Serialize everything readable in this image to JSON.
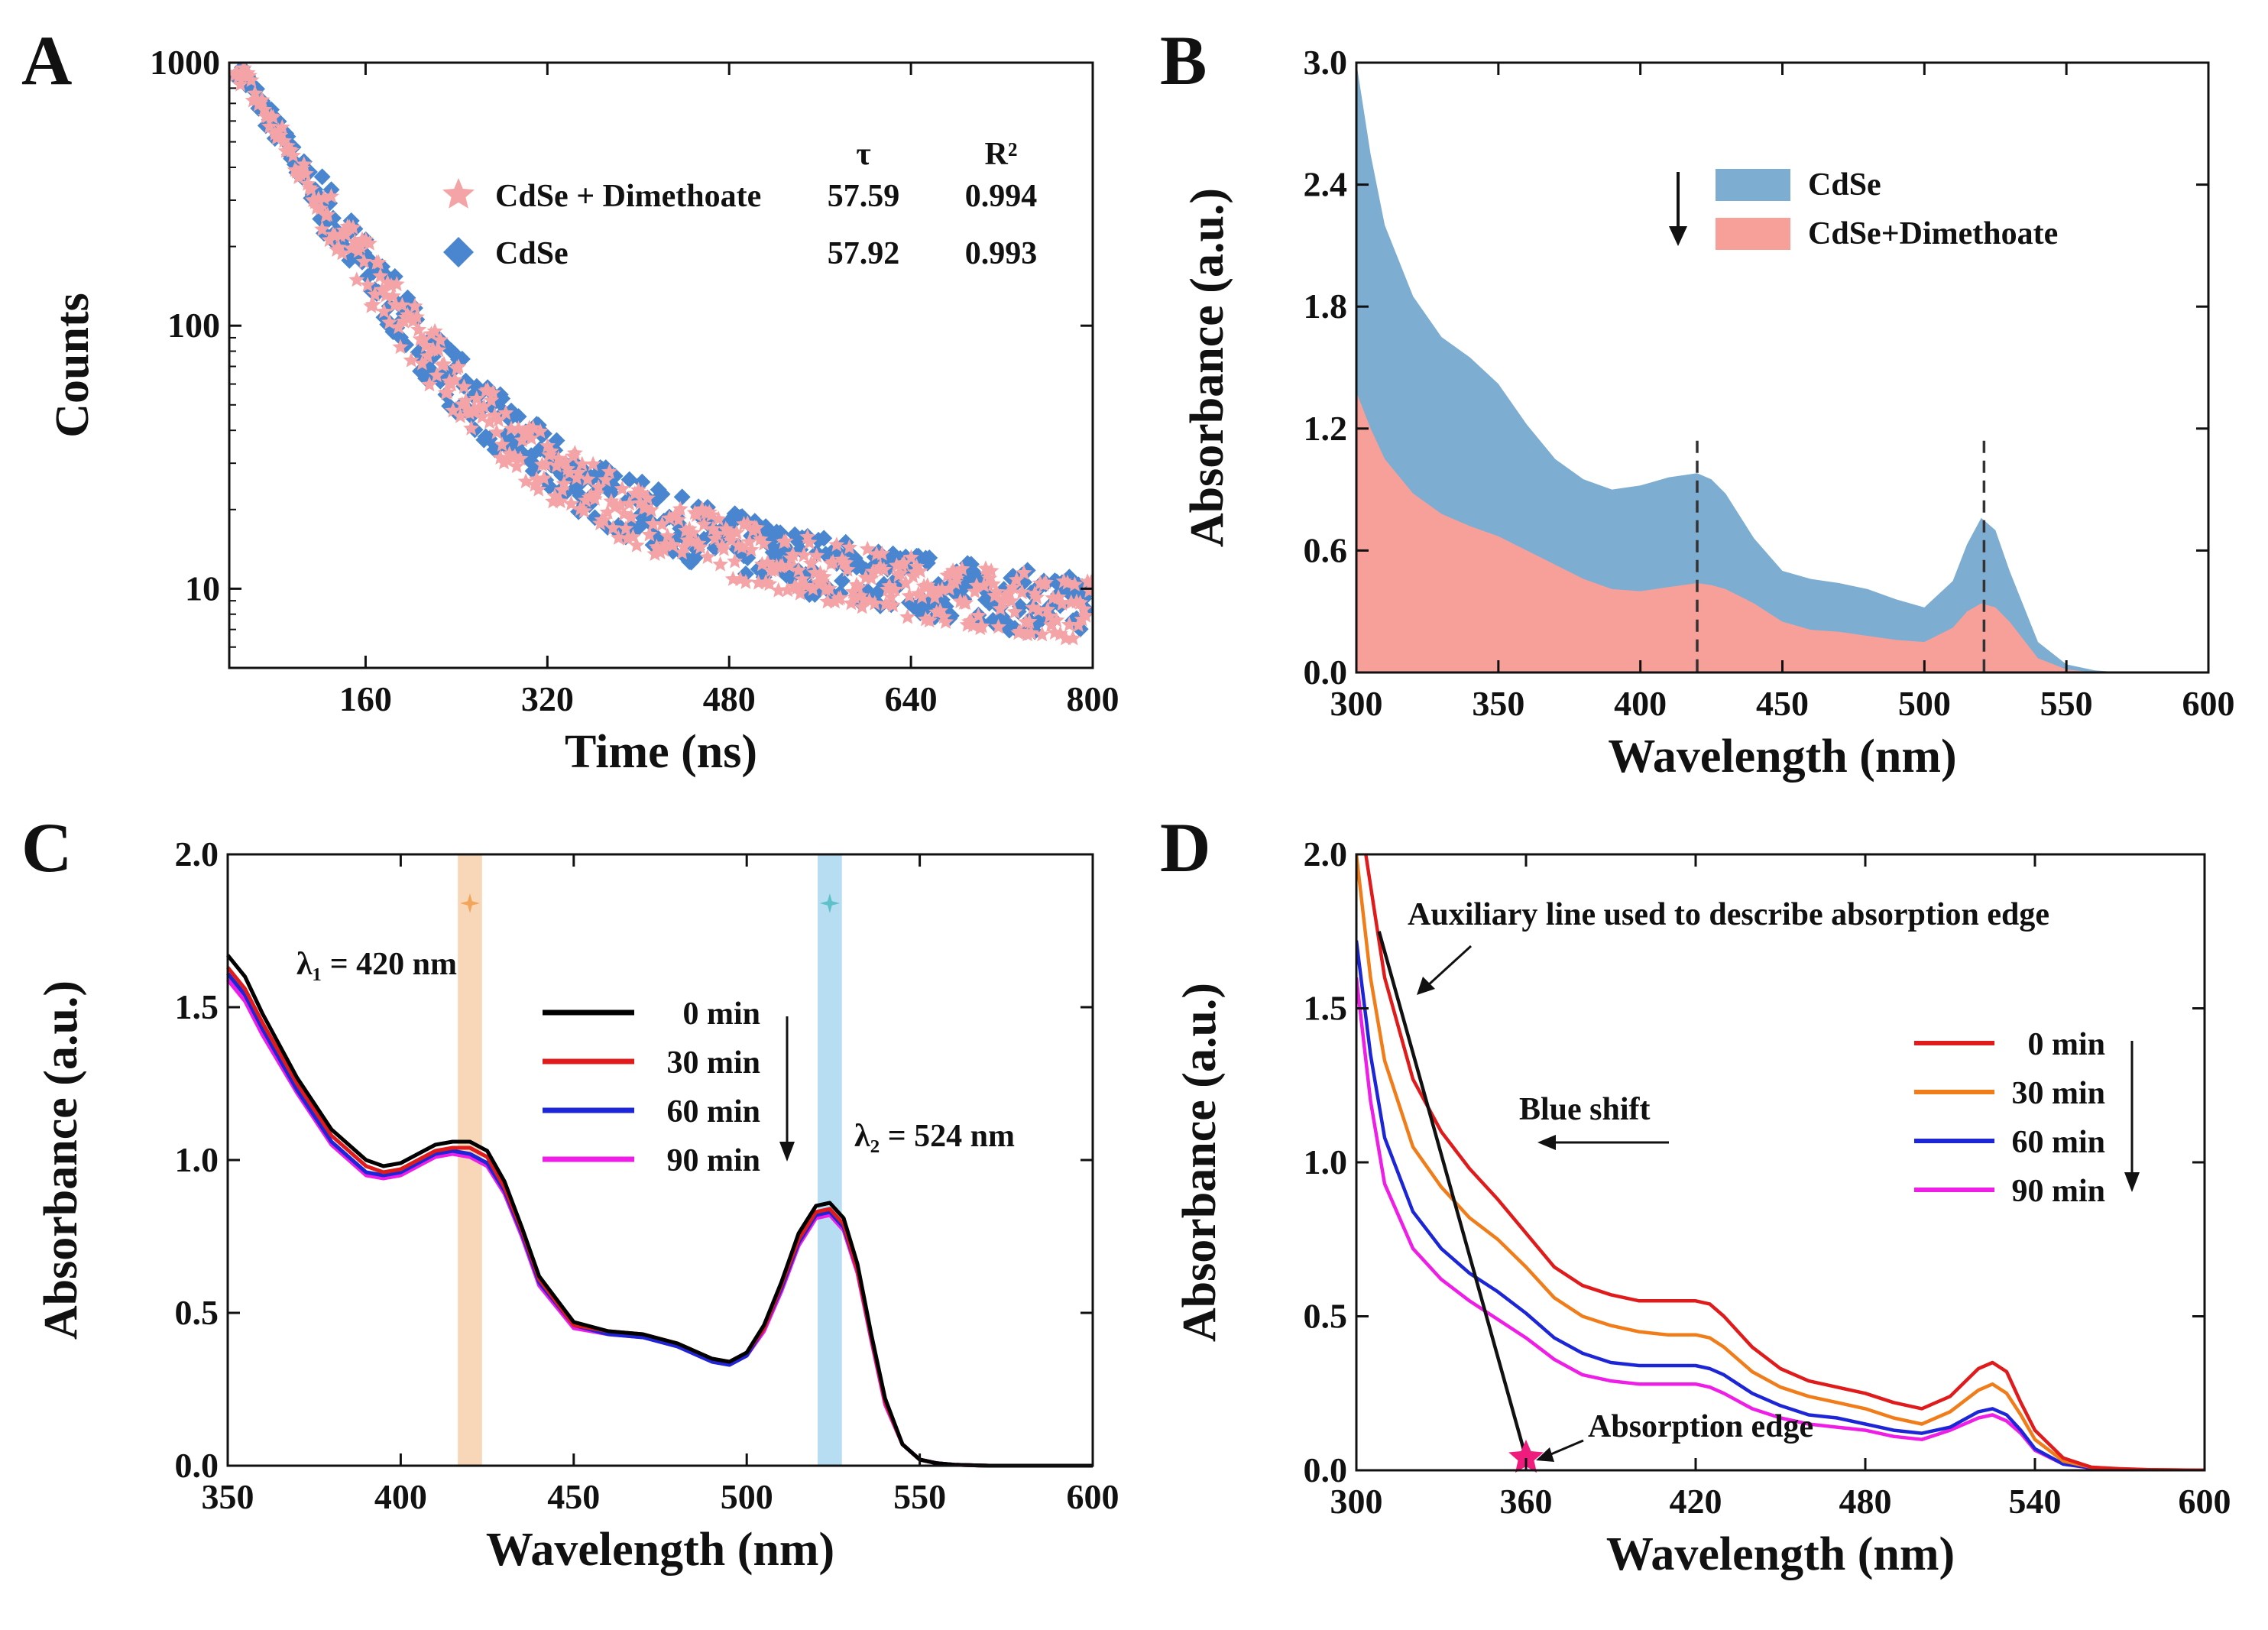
{
  "chart_data": [
    {
      "panel": "A",
      "type": "scatter",
      "xlabel": "Time (ns)",
      "ylabel": "Counts",
      "xscale": "linear",
      "yscale": "log",
      "xlim": [
        40,
        800
      ],
      "ylim": [
        5,
        1000
      ],
      "xticks": [
        "160",
        "320",
        "480",
        "640",
        "800"
      ],
      "yticks": [
        "10",
        "100",
        "1000"
      ],
      "legend_header": {
        "tau": "τ",
        "r2": "R²"
      },
      "legend_position": "top-right",
      "series": [
        {
          "name": "CdSe + Dimethoate",
          "marker": "star",
          "color": "#f4a3a6",
          "tau": "57.59",
          "r2": "0.994",
          "decay": {
            "peak": 1000,
            "tau_ns": 57.59,
            "slow_amp": 45,
            "slow_tau_ns": 250,
            "floor": 6,
            "t0": 45
          }
        },
        {
          "name": "CdSe",
          "marker": "diamond",
          "color": "#4a86cf",
          "tau": "57.92",
          "r2": "0.993",
          "decay": {
            "peak": 1000,
            "tau_ns": 57.92,
            "slow_amp": 48,
            "slow_tau_ns": 250,
            "floor": 6,
            "t0": 45
          }
        }
      ]
    },
    {
      "panel": "B",
      "type": "area",
      "xlabel": "Wavelength (nm)",
      "ylabel": "Absorbance (a.u.)",
      "xlim": [
        300,
        600
      ],
      "ylim": [
        0,
        3.0
      ],
      "xticks": [
        "300",
        "350",
        "400",
        "450",
        "500",
        "550",
        "600"
      ],
      "yticks": [
        "0.0",
        "0.6",
        "1.2",
        "1.8",
        "2.4",
        "3.0"
      ],
      "markers": [
        420,
        521
      ],
      "legend_position": "top-right",
      "x": [
        300,
        305,
        310,
        320,
        330,
        340,
        350,
        360,
        370,
        380,
        390,
        400,
        410,
        420,
        425,
        430,
        440,
        450,
        460,
        470,
        480,
        490,
        500,
        510,
        515,
        520,
        525,
        530,
        540,
        550,
        560,
        570,
        600
      ],
      "series": [
        {
          "name": "CdSe",
          "color": "#7eadd2",
          "values": [
            3.0,
            2.55,
            2.2,
            1.85,
            1.65,
            1.55,
            1.42,
            1.22,
            1.05,
            0.95,
            0.9,
            0.92,
            0.96,
            0.98,
            0.95,
            0.88,
            0.66,
            0.5,
            0.46,
            0.44,
            0.41,
            0.36,
            0.32,
            0.45,
            0.63,
            0.76,
            0.7,
            0.5,
            0.15,
            0.04,
            0.01,
            0.0,
            0.0
          ]
        },
        {
          "name": "CdSe+Dimethoate",
          "color": "#f7a09a",
          "values": [
            1.38,
            1.2,
            1.05,
            0.88,
            0.78,
            0.72,
            0.67,
            0.6,
            0.53,
            0.46,
            0.41,
            0.4,
            0.42,
            0.44,
            0.43,
            0.41,
            0.34,
            0.25,
            0.21,
            0.2,
            0.18,
            0.16,
            0.15,
            0.22,
            0.3,
            0.34,
            0.32,
            0.25,
            0.07,
            0.015,
            0.0,
            0.0,
            0.0
          ]
        }
      ]
    },
    {
      "panel": "C",
      "type": "line",
      "xlabel": "Wavelength (nm)",
      "ylabel": "Absorbance (a.u.)",
      "xlim": [
        350,
        600
      ],
      "ylim": [
        0,
        2.0
      ],
      "xticks": [
        "350",
        "400",
        "450",
        "500",
        "550",
        "600"
      ],
      "yticks": [
        "0.0",
        "0.5",
        "1.0",
        "1.5",
        "2.0"
      ],
      "annotations": {
        "lambda1": "λ₁ = 420 nm",
        "lambda2": "λ₂ = 524 nm"
      },
      "bands": [
        {
          "center": 420,
          "width": 7,
          "color": "#f6c9a0"
        },
        {
          "center": 524,
          "width": 7,
          "color": "#9fd2ee"
        }
      ],
      "legend_position": "center",
      "x": [
        350,
        355,
        360,
        370,
        380,
        390,
        395,
        400,
        405,
        410,
        415,
        420,
        425,
        430,
        435,
        440,
        450,
        460,
        470,
        480,
        490,
        495,
        500,
        505,
        510,
        515,
        520,
        524,
        528,
        532,
        536,
        540,
        545,
        550,
        555,
        560,
        570,
        600
      ],
      "series": [
        {
          "name": "0  min",
          "color": "#000000",
          "values": [
            1.67,
            1.6,
            1.48,
            1.27,
            1.1,
            1.0,
            0.98,
            0.99,
            1.02,
            1.05,
            1.06,
            1.06,
            1.03,
            0.93,
            0.78,
            0.62,
            0.47,
            0.44,
            0.43,
            0.4,
            0.35,
            0.34,
            0.37,
            0.46,
            0.6,
            0.76,
            0.85,
            0.86,
            0.81,
            0.66,
            0.43,
            0.22,
            0.07,
            0.02,
            0.008,
            0.003,
            0.0,
            0.0
          ]
        },
        {
          "name": "30 min",
          "color": "#e01b1b",
          "values": [
            1.63,
            1.56,
            1.45,
            1.25,
            1.08,
            0.98,
            0.96,
            0.97,
            1.0,
            1.03,
            1.04,
            1.04,
            1.01,
            0.91,
            0.77,
            0.61,
            0.46,
            0.44,
            0.43,
            0.4,
            0.35,
            0.34,
            0.37,
            0.45,
            0.59,
            0.74,
            0.83,
            0.84,
            0.79,
            0.64,
            0.42,
            0.21,
            0.07,
            0.02,
            0.008,
            0.003,
            0.0,
            0.0
          ]
        },
        {
          "name": "60 min",
          "color": "#1d26d6",
          "values": [
            1.61,
            1.54,
            1.43,
            1.23,
            1.06,
            0.96,
            0.95,
            0.96,
            0.99,
            1.02,
            1.03,
            1.02,
            0.99,
            0.9,
            0.76,
            0.6,
            0.46,
            0.43,
            0.42,
            0.39,
            0.34,
            0.33,
            0.36,
            0.45,
            0.58,
            0.73,
            0.82,
            0.83,
            0.78,
            0.64,
            0.42,
            0.21,
            0.07,
            0.02,
            0.008,
            0.003,
            0.0,
            0.0
          ]
        },
        {
          "name": "90 min",
          "color": "#ee1ee6",
          "values": [
            1.59,
            1.52,
            1.41,
            1.22,
            1.05,
            0.95,
            0.94,
            0.95,
            0.98,
            1.01,
            1.02,
            1.01,
            0.98,
            0.89,
            0.75,
            0.59,
            0.45,
            0.43,
            0.42,
            0.39,
            0.34,
            0.33,
            0.36,
            0.44,
            0.57,
            0.72,
            0.81,
            0.82,
            0.77,
            0.63,
            0.41,
            0.2,
            0.07,
            0.02,
            0.008,
            0.003,
            0.0,
            0.0
          ]
        }
      ]
    },
    {
      "panel": "D",
      "type": "line",
      "xlabel": "Wavelength (nm)",
      "ylabel": "Absorbance (a.u.)",
      "xlim": [
        300,
        600
      ],
      "ylim": [
        0,
        2.0
      ],
      "xticks": [
        "300",
        "360",
        "420",
        "480",
        "540",
        "600"
      ],
      "yticks": [
        "0.0",
        "0.5",
        "1.0",
        "1.5",
        "2.0"
      ],
      "annotations": {
        "auxiliary": "Auxiliary line used to describe absorption edge",
        "blue_shift": "Blue shift",
        "absorption_edge": "Absorption edge"
      },
      "auxiliary_line": {
        "x": [
          308,
          360
        ],
        "y": [
          1.75,
          0.04
        ]
      },
      "edge_point": {
        "x": 360,
        "y": 0.04,
        "color": "#ee1c7c"
      },
      "legend_position": "right",
      "x": [
        300,
        305,
        310,
        320,
        330,
        340,
        350,
        360,
        370,
        380,
        390,
        400,
        410,
        420,
        425,
        430,
        440,
        450,
        460,
        470,
        480,
        490,
        500,
        510,
        520,
        525,
        530,
        535,
        540,
        550,
        560,
        570,
        580,
        600
      ],
      "series": [
        {
          "name": "0  min",
          "color": "#e01b1b",
          "values": [
            2.2,
            1.9,
            1.6,
            1.27,
            1.1,
            0.98,
            0.88,
            0.77,
            0.66,
            0.6,
            0.57,
            0.55,
            0.55,
            0.55,
            0.54,
            0.5,
            0.4,
            0.33,
            0.29,
            0.27,
            0.25,
            0.22,
            0.2,
            0.24,
            0.33,
            0.35,
            0.32,
            0.22,
            0.13,
            0.04,
            0.01,
            0.005,
            0.002,
            0.0
          ]
        },
        {
          "name": "30 min",
          "color": "#f07d1a",
          "values": [
            2.0,
            1.6,
            1.33,
            1.05,
            0.92,
            0.82,
            0.75,
            0.66,
            0.56,
            0.5,
            0.47,
            0.45,
            0.44,
            0.44,
            0.43,
            0.4,
            0.32,
            0.27,
            0.24,
            0.22,
            0.2,
            0.17,
            0.15,
            0.19,
            0.26,
            0.28,
            0.25,
            0.18,
            0.1,
            0.03,
            0.01,
            0.004,
            0.002,
            0.0
          ]
        },
        {
          "name": "60 min",
          "color": "#1d26d6",
          "values": [
            1.72,
            1.35,
            1.08,
            0.84,
            0.72,
            0.64,
            0.58,
            0.51,
            0.43,
            0.38,
            0.35,
            0.34,
            0.34,
            0.34,
            0.33,
            0.31,
            0.25,
            0.21,
            0.18,
            0.17,
            0.15,
            0.13,
            0.12,
            0.14,
            0.19,
            0.2,
            0.18,
            0.13,
            0.07,
            0.02,
            0.008,
            0.003,
            0.001,
            0.0
          ]
        },
        {
          "name": "90 min",
          "color": "#ee1ee6",
          "values": [
            1.6,
            1.2,
            0.93,
            0.72,
            0.62,
            0.55,
            0.49,
            0.43,
            0.36,
            0.31,
            0.29,
            0.28,
            0.28,
            0.28,
            0.27,
            0.25,
            0.2,
            0.17,
            0.15,
            0.14,
            0.13,
            0.11,
            0.1,
            0.13,
            0.17,
            0.18,
            0.16,
            0.12,
            0.065,
            0.02,
            0.007,
            0.003,
            0.001,
            0.0
          ]
        }
      ]
    }
  ]
}
